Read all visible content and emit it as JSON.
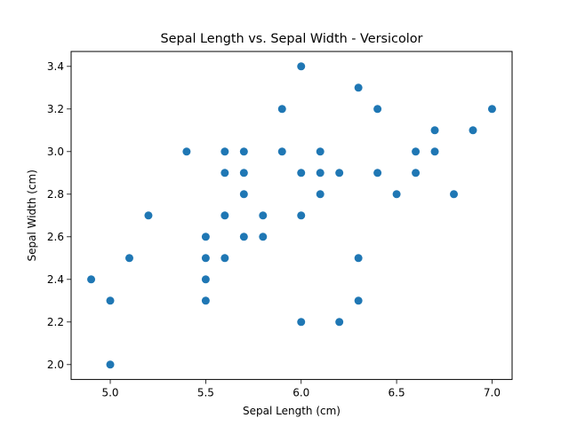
{
  "chart_data": {
    "type": "scatter",
    "title": "Sepal Length vs. Sepal Width - Versicolor",
    "xlabel": "Sepal Length (cm)",
    "ylabel": "Sepal Width (cm)",
    "xlim": [
      4.795,
      7.105
    ],
    "ylim": [
      1.93,
      3.47
    ],
    "xticks": [
      5.0,
      5.5,
      6.0,
      6.5,
      7.0
    ],
    "xtick_labels": [
      "5.0",
      "5.5",
      "6.0",
      "6.5",
      "7.0"
    ],
    "yticks": [
      2.0,
      2.2,
      2.4,
      2.6,
      2.8,
      3.0,
      3.2,
      3.4
    ],
    "ytick_labels": [
      "2.0",
      "2.2",
      "2.4",
      "2.6",
      "2.8",
      "3.0",
      "3.2",
      "3.4"
    ],
    "grid": false,
    "color": "#1f77b4",
    "series": [
      {
        "x": [
          4.9,
          5.0,
          5.0,
          5.1,
          5.2,
          5.4,
          5.5,
          5.5,
          5.5,
          5.5,
          5.6,
          5.6,
          5.6,
          5.6,
          5.7,
          5.7,
          5.7,
          5.7,
          5.8,
          5.8,
          5.9,
          5.9,
          6.0,
          6.0,
          6.0,
          6.0,
          6.1,
          6.1,
          6.1,
          6.2,
          6.2,
          6.3,
          6.3,
          6.3,
          6.4,
          6.4,
          6.5,
          6.6,
          6.6,
          6.7,
          6.7,
          6.8,
          6.9,
          7.0
        ],
        "y": [
          2.4,
          2.0,
          2.3,
          2.5,
          2.7,
          3.0,
          2.3,
          2.4,
          2.5,
          2.6,
          2.5,
          2.7,
          2.9,
          3.0,
          2.6,
          2.8,
          2.9,
          3.0,
          2.6,
          2.7,
          3.0,
          3.2,
          2.2,
          2.7,
          2.9,
          3.4,
          2.8,
          2.9,
          3.0,
          2.2,
          2.9,
          2.3,
          2.5,
          3.3,
          2.9,
          3.2,
          2.8,
          2.9,
          3.0,
          3.0,
          3.1,
          2.8,
          3.1,
          3.2
        ]
      }
    ]
  }
}
